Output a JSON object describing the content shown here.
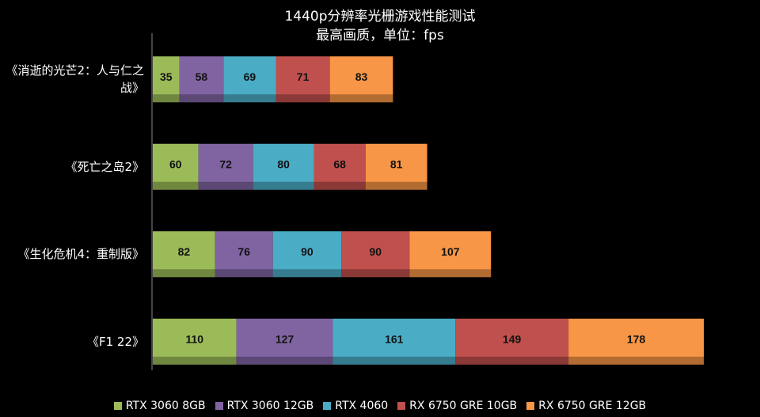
{
  "chart_data": {
    "type": "stacked-bar-horizontal",
    "title": "1440p分辨率光栅游戏性能测试",
    "subtitle": "最高画质，单位：fps",
    "categories": [
      "《消逝的光芒2：人与仁之战》",
      "《死亡之岛2》",
      "《生化危机4：重制版》",
      "《F1 22》"
    ],
    "series": [
      {
        "name": "RTX 3060 8GB",
        "color": "#9bbb59",
        "values": [
          35,
          60,
          82,
          110
        ]
      },
      {
        "name": "RTX 3060 12GB",
        "color": "#8064a2",
        "values": [
          58,
          72,
          76,
          127
        ]
      },
      {
        "name": "RTX 4060",
        "color": "#4bacc6",
        "values": [
          69,
          80,
          90,
          161
        ]
      },
      {
        "name": "RX 6750 GRE 10GB",
        "color": "#c0504d",
        "values": [
          71,
          68,
          90,
          149
        ]
      },
      {
        "name": "RX 6750 GRE 12GB",
        "color": "#f79646",
        "values": [
          83,
          81,
          107,
          178
        ]
      }
    ],
    "legend": "bottom"
  }
}
